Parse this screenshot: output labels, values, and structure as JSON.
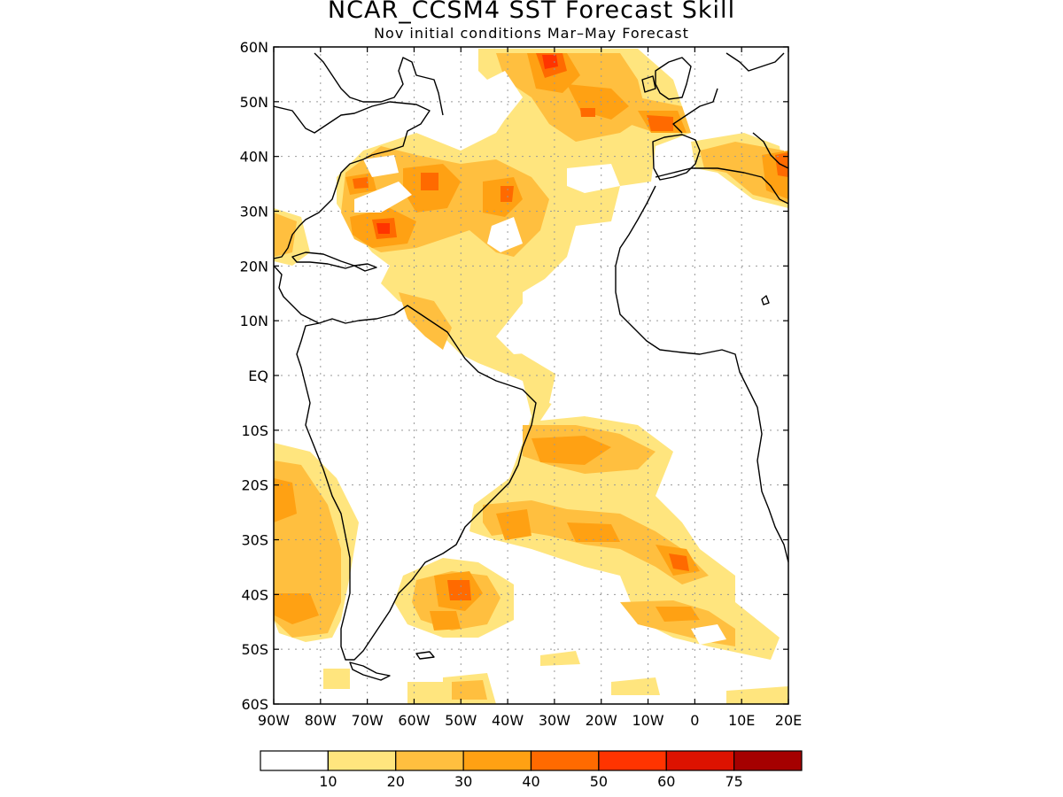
{
  "title": "NCAR_CCSM4 SST Forecast Skill",
  "subtitle": "Nov initial conditions  Mar–May Forecast",
  "map": {
    "region": "Atlantic Ocean",
    "lon_range": [
      -90,
      20
    ],
    "lat_range": [
      -60,
      60
    ],
    "lat_ticks": [
      {
        "value": 60,
        "label": "60N"
      },
      {
        "value": 50,
        "label": "50N"
      },
      {
        "value": 40,
        "label": "40N"
      },
      {
        "value": 30,
        "label": "30N"
      },
      {
        "value": 20,
        "label": "20N"
      },
      {
        "value": 10,
        "label": "10N"
      },
      {
        "value": 0,
        "label": "EQ"
      },
      {
        "value": -10,
        "label": "10S"
      },
      {
        "value": -20,
        "label": "20S"
      },
      {
        "value": -30,
        "label": "30S"
      },
      {
        "value": -40,
        "label": "40S"
      },
      {
        "value": -50,
        "label": "50S"
      },
      {
        "value": -60,
        "label": "60S"
      }
    ],
    "lon_ticks": [
      {
        "value": -90,
        "label": "90W"
      },
      {
        "value": -80,
        "label": "80W"
      },
      {
        "value": -70,
        "label": "70W"
      },
      {
        "value": -60,
        "label": "60W"
      },
      {
        "value": -50,
        "label": "50W"
      },
      {
        "value": -40,
        "label": "40W"
      },
      {
        "value": -30,
        "label": "30W"
      },
      {
        "value": -20,
        "label": "20W"
      },
      {
        "value": -10,
        "label": "10W"
      },
      {
        "value": 0,
        "label": "0"
      },
      {
        "value": 10,
        "label": "10E"
      },
      {
        "value": 20,
        "label": "20E"
      }
    ],
    "grid": true,
    "colors": {
      "land_outline": "#000000",
      "ocean_background": "#ffffff",
      "grid": "#999999"
    }
  },
  "colorbar": {
    "bins": [
      {
        "color": "#ffffff"
      },
      {
        "color": "#ffe57e"
      },
      {
        "color": "#ffbf3f"
      },
      {
        "color": "#ffa113"
      },
      {
        "color": "#ff6a00"
      },
      {
        "color": "#ff3400"
      },
      {
        "color": "#dd1200"
      },
      {
        "color": "#a50000"
      }
    ],
    "labels": [
      "10",
      "20",
      "30",
      "40",
      "50",
      "60",
      "75"
    ]
  }
}
